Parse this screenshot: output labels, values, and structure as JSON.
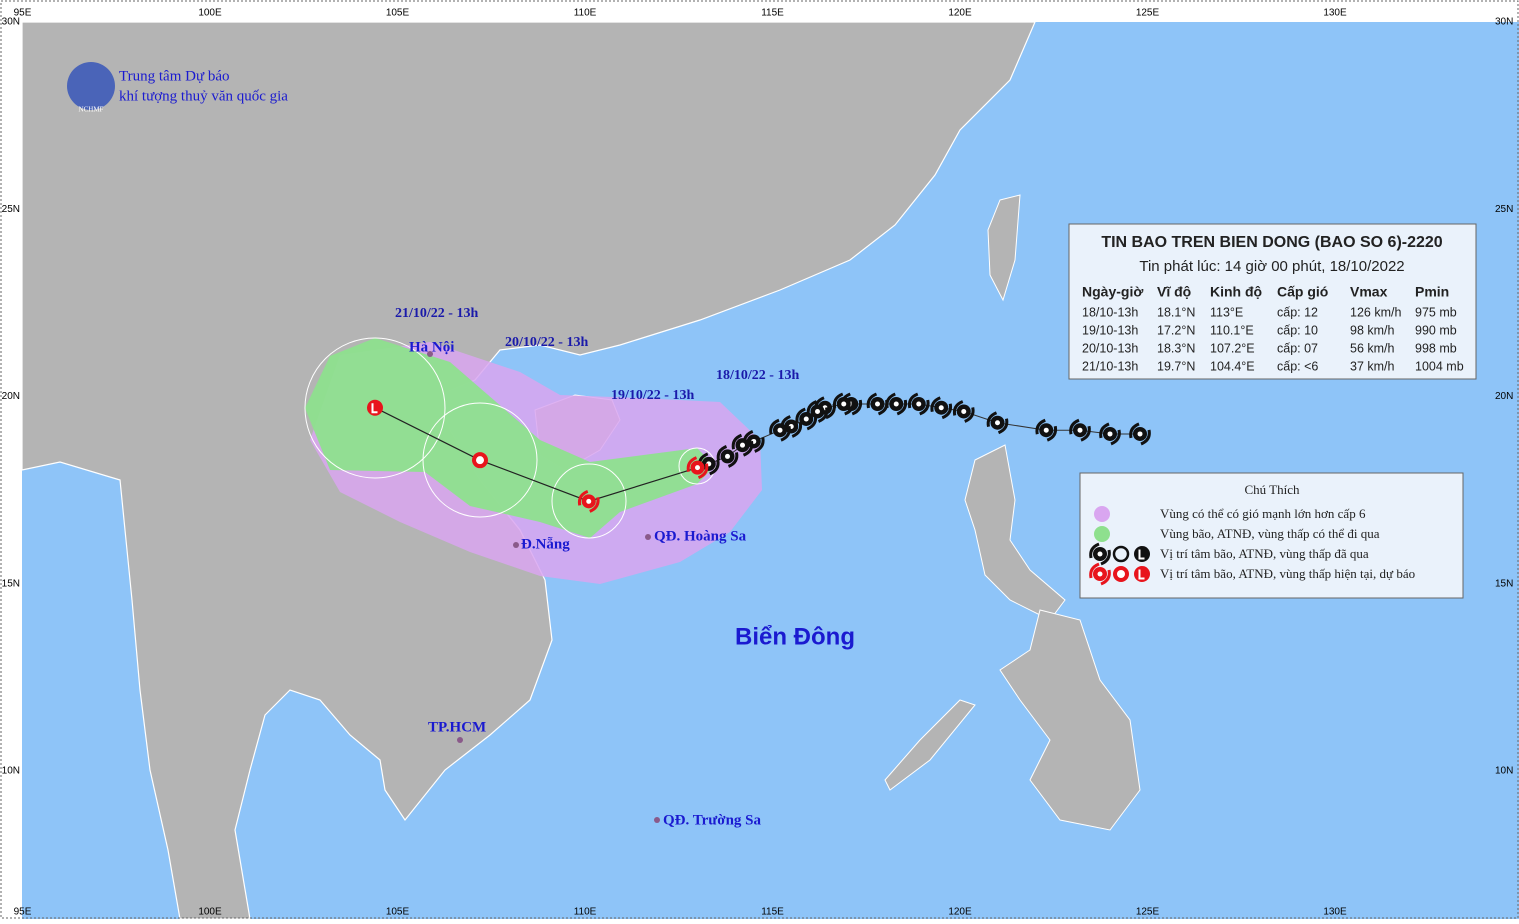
{
  "logo": {
    "line1": "Trung tâm Dự báo",
    "line2": "khí tượng thuỷ văn quốc gia",
    "abbr": "NCHMF"
  },
  "lon_ticks": [
    {
      "value": 95,
      "label": "95E"
    },
    {
      "value": 100,
      "label": "100E"
    },
    {
      "value": 105,
      "label": "105E"
    },
    {
      "value": 110,
      "label": "110E"
    },
    {
      "value": 115,
      "label": "115E"
    },
    {
      "value": 120,
      "label": "120E"
    },
    {
      "value": 125,
      "label": "125E"
    },
    {
      "value": 130,
      "label": "130E"
    }
  ],
  "lat_ticks": [
    {
      "value": 30,
      "label": "30N"
    },
    {
      "value": 25,
      "label": "25N"
    },
    {
      "value": 20,
      "label": "20N"
    },
    {
      "value": 15,
      "label": "15N"
    },
    {
      "value": 10,
      "label": "10N"
    }
  ],
  "places": {
    "hanoi": "Hà Nội",
    "danang": "Đ.Nẵng",
    "hoangsa": "QĐ. Hoàng Sa",
    "sea": "Biển Đông",
    "hcm": "TP.HCM",
    "truongsa": "QĐ. Trường Sa"
  },
  "track_labels": [
    "18/10/22 - 13h",
    "19/10/22 - 13h",
    "20/10/22 - 13h",
    "21/10/22 - 13h"
  ],
  "bulletin": {
    "title": "TIN BAO TREN BIEN DONG (BAO SO 6)-2220",
    "subtitle": "Tin phát lúc: 14 giờ 00 phút, 18/10/2022",
    "headers": [
      "Ngày-giờ",
      "Vĩ độ",
      "Kinh độ",
      "Cấp gió",
      "Vmax",
      "Pmin"
    ],
    "rows": [
      {
        "time": "18/10-13h",
        "lat": {
          "value": 18.1,
          "label": "18.1°N"
        },
        "lon": {
          "value": 113,
          "label": "113°E"
        },
        "level": "cấp: 12",
        "vmax": "126 km/h",
        "pmin": "975 mb",
        "symbol": "storm"
      },
      {
        "time": "19/10-13h",
        "lat": {
          "value": 17.2,
          "label": "17.2°N"
        },
        "lon": {
          "value": 110.1,
          "label": "110.1°E"
        },
        "level": "cấp: 10",
        "vmax": "98 km/h",
        "pmin": "990 mb",
        "symbol": "storm"
      },
      {
        "time": "20/10-13h",
        "lat": {
          "value": 18.3,
          "label": "18.3°N"
        },
        "lon": {
          "value": 107.2,
          "label": "107.2°E"
        },
        "level": "cấp: 07",
        "vmax": "56 km/h",
        "pmin": "998 mb",
        "symbol": "depression"
      },
      {
        "time": "21/10-13h",
        "lat": {
          "value": 19.7,
          "label": "19.7°N"
        },
        "lon": {
          "value": 104.4,
          "label": "104.4°E"
        },
        "level": "cấp: <6",
        "vmax": "37 km/h",
        "pmin": "1004 mb",
        "symbol": "low"
      }
    ]
  },
  "past_track": {
    "lon": [
      124.8,
      124.0,
      123.2,
      122.3,
      121.0,
      120.1,
      119.5,
      118.9,
      118.3,
      117.8,
      117.1,
      116.9,
      116.4,
      116.2,
      115.9,
      115.5,
      115.2,
      114.5,
      114.2,
      113.8,
      113.3
    ],
    "lat": [
      19.0,
      19.0,
      19.1,
      19.1,
      19.3,
      19.6,
      19.7,
      19.8,
      19.8,
      19.8,
      19.8,
      19.8,
      19.7,
      19.6,
      19.4,
      19.2,
      19.1,
      18.8,
      18.7,
      18.4,
      18.2
    ]
  },
  "legend": {
    "title": "Chú Thích",
    "items": [
      "Vùng có thể có gió mạnh lớn hơn cấp 6",
      "Vùng bão, ATNĐ, vùng thấp có thể đi qua",
      "Vị trí tâm bão, ATNĐ, vùng thấp đã qua",
      "Vị trí tâm bão, ATNĐ, vùng thấp hiện tại, dự báo"
    ]
  }
}
